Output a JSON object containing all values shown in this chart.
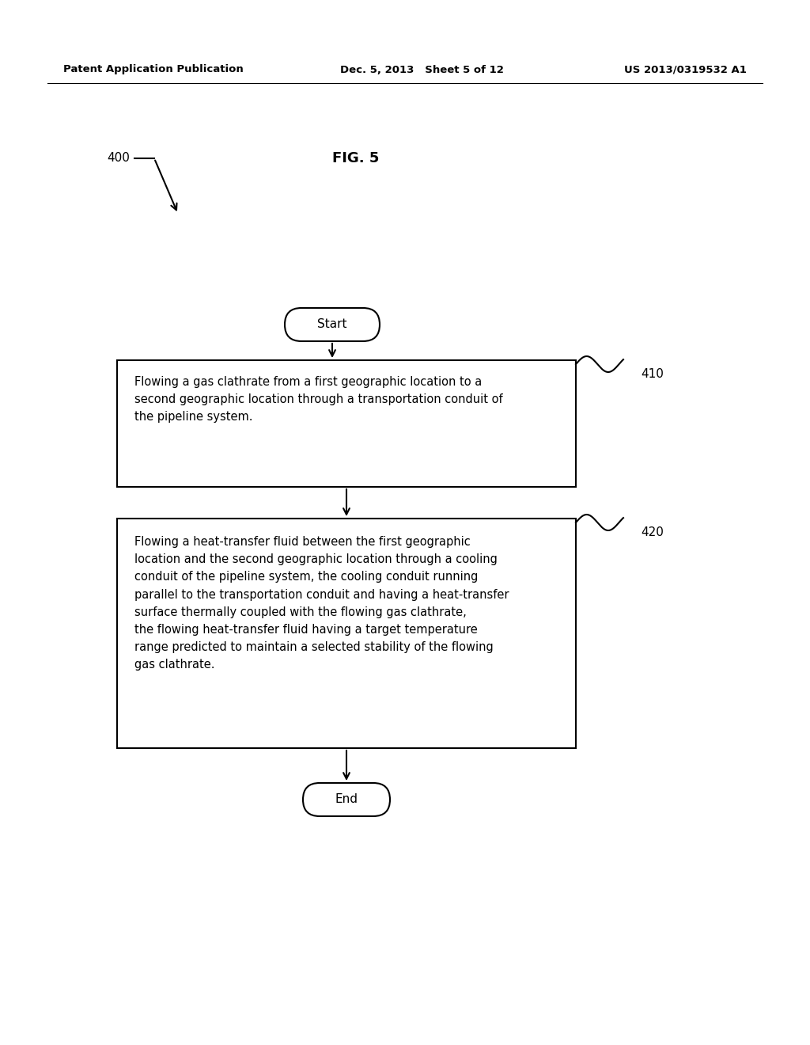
{
  "bg_color": "#ffffff",
  "header_left": "Patent Application Publication",
  "header_center": "Dec. 5, 2013   Sheet 5 of 12",
  "header_right": "US 2013/0319532 A1",
  "fig_label": "FIG. 5",
  "diagram_ref": "400",
  "box1_label": "410",
  "box2_label": "420",
  "start_text": "Start",
  "end_text": "End",
  "box1_text": "Flowing a gas clathrate from a first geographic location to a\nsecond geographic location through a transportation conduit of\nthe pipeline system.",
  "box2_text": "Flowing a heat-transfer fluid between the first geographic\nlocation and the second geographic location through a cooling\nconduit of the pipeline system, the cooling conduit running\nparallel to the transportation conduit and having a heat-transfer\nsurface thermally coupled with the flowing gas clathrate,\nthe flowing heat-transfer fluid having a target temperature\nrange predicted to maintain a selected stability of the flowing\ngas clathrate.",
  "line_color": "#000000",
  "text_color": "#000000",
  "font_size_header": 9.5,
  "font_size_body": 10.5,
  "font_size_fig": 13,
  "font_size_ref": 11
}
